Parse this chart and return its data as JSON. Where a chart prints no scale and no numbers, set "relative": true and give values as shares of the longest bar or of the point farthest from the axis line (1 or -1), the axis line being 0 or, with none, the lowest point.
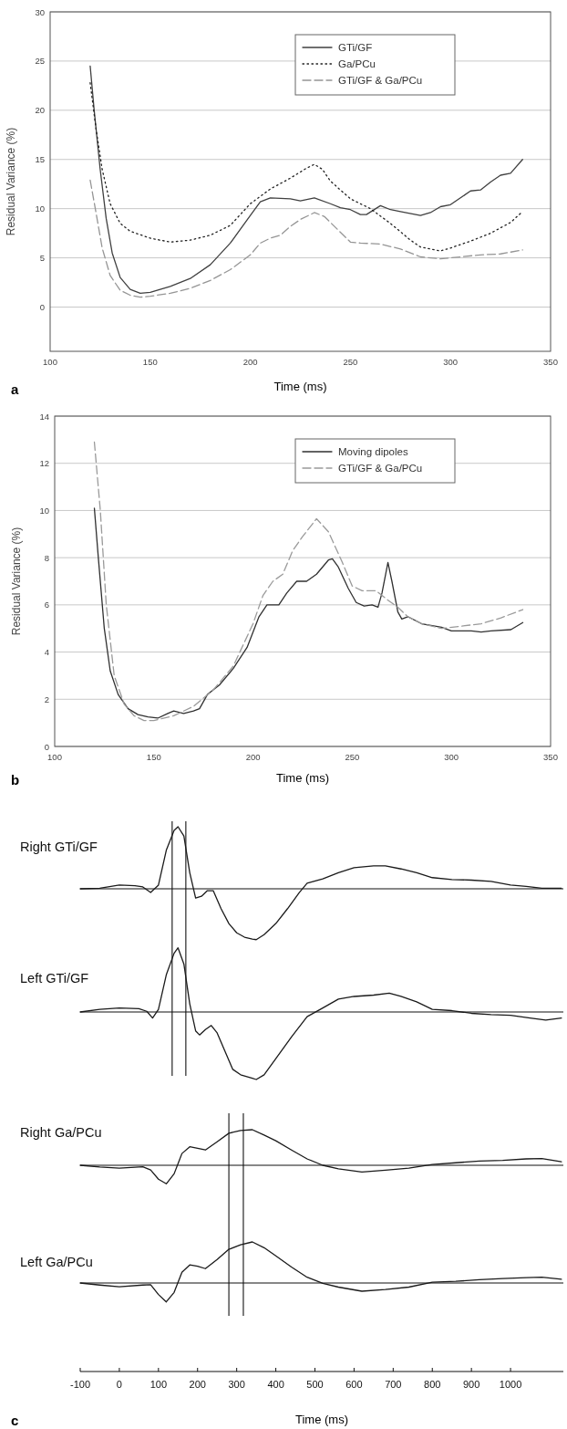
{
  "chart_data": [
    {
      "type": "line",
      "xlabel": "Time (ms)",
      "ylabel": "Residual Variance (%)",
      "annotations": [
        "a"
      ],
      "xlim": [
        100,
        350
      ],
      "xticks": [
        100,
        150,
        200,
        250,
        300,
        350
      ],
      "ylim": [
        -4.5,
        30
      ],
      "yticks": [
        0,
        5,
        10,
        15,
        20,
        25,
        30
      ],
      "grid": "y",
      "legend": "top right",
      "series": [
        {
          "name": "GTi/GF",
          "color": "#404040",
          "line_style": "solid",
          "x": [
            120,
            122,
            125,
            128,
            131,
            135,
            140,
            145,
            150,
            160,
            170,
            180,
            190,
            200,
            205,
            210,
            220,
            225,
            232,
            240,
            245,
            250,
            255,
            258,
            265,
            270,
            275,
            285,
            290,
            295,
            300,
            305,
            310,
            315,
            320,
            325,
            330,
            336
          ],
          "values": [
            24.5,
            20,
            14,
            9,
            5.5,
            3,
            1.8,
            1.4,
            1.5,
            2.1,
            2.9,
            4.3,
            6.5,
            9.3,
            10.7,
            11.1,
            11.0,
            10.8,
            11.1,
            10.5,
            10.1,
            9.9,
            9.4,
            9.4,
            10.3,
            9.9,
            9.7,
            9.3,
            9.6,
            10.2,
            10.4,
            11.1,
            11.8,
            11.9,
            12.7,
            13.4,
            13.6,
            15.0
          ]
        },
        {
          "name": "Ga/PCu",
          "color": "#202020",
          "line_style": "dotted",
          "x": [
            120,
            123,
            126,
            130,
            135,
            140,
            150,
            160,
            170,
            180,
            190,
            200,
            210,
            220,
            228,
            232,
            236,
            240,
            250,
            260,
            270,
            280,
            285,
            295,
            300,
            310,
            320,
            330,
            336
          ],
          "values": [
            22.8,
            18,
            14,
            10.5,
            8.5,
            7.7,
            7.0,
            6.6,
            6.8,
            7.3,
            8.3,
            10.5,
            12,
            13.1,
            14.1,
            14.5,
            14.0,
            12.8,
            11.0,
            10.0,
            8.5,
            6.8,
            6.1,
            5.7,
            6.0,
            6.7,
            7.5,
            8.6,
            9.7
          ]
        },
        {
          "name": "GTi/GF & Ga/PCu",
          "color": "#959595",
          "line_style": "dashed",
          "x": [
            120,
            123,
            126,
            130,
            135,
            140,
            145,
            150,
            160,
            170,
            180,
            190,
            200,
            205,
            210,
            215,
            220,
            225,
            232,
            237,
            245,
            250,
            255,
            265,
            275,
            285,
            295,
            305,
            315,
            325,
            336
          ],
          "values": [
            12.9,
            9.5,
            6,
            3.2,
            1.7,
            1.2,
            1.0,
            1.1,
            1.4,
            1.9,
            2.7,
            3.8,
            5.3,
            6.5,
            7.0,
            7.3,
            8.2,
            8.9,
            9.6,
            9.2,
            7.6,
            6.6,
            6.5,
            6.4,
            5.9,
            5.1,
            4.9,
            5.1,
            5.3,
            5.4,
            5.8
          ]
        }
      ]
    },
    {
      "type": "line",
      "xlabel": "Time (ms)",
      "ylabel": "Residual Variance (%)",
      "annotations": [
        "b"
      ],
      "xlim": [
        100,
        350
      ],
      "xticks": [
        100,
        150,
        200,
        250,
        300,
        350
      ],
      "ylim": [
        0,
        14
      ],
      "yticks": [
        0,
        2,
        4,
        6,
        8,
        10,
        12,
        14
      ],
      "grid": "y",
      "legend": "top right",
      "series": [
        {
          "name": "Moving dipoles",
          "color": "#303030",
          "line_style": "solid",
          "x": [
            120,
            122,
            125,
            128,
            132,
            137,
            142,
            147,
            152,
            157,
            160,
            165,
            170,
            173,
            177,
            183,
            190,
            197,
            203,
            207,
            213,
            217,
            222,
            227,
            232,
            238,
            240,
            243,
            248,
            252,
            256,
            260,
            263,
            265,
            268,
            270,
            273,
            275,
            278,
            285,
            295,
            300,
            310,
            315,
            320,
            330,
            336
          ],
          "values": [
            10.1,
            8,
            5,
            3.2,
            2.2,
            1.6,
            1.35,
            1.25,
            1.2,
            1.4,
            1.5,
            1.4,
            1.5,
            1.6,
            2.2,
            2.6,
            3.3,
            4.2,
            5.5,
            6.0,
            6.0,
            6.5,
            7.0,
            7.0,
            7.3,
            7.9,
            7.95,
            7.6,
            6.7,
            6.1,
            5.95,
            6.0,
            5.9,
            6.5,
            7.8,
            7.0,
            5.7,
            5.4,
            5.5,
            5.2,
            5.05,
            4.9,
            4.9,
            4.85,
            4.9,
            4.95,
            5.25
          ]
        },
        {
          "name": "GTi/GF & Ga/PCu",
          "color": "#9a9a9a",
          "line_style": "dashed",
          "x": [
            120,
            123,
            126,
            130,
            135,
            140,
            145,
            150,
            160,
            170,
            180,
            190,
            200,
            205,
            210,
            215,
            220,
            225,
            232,
            238,
            245,
            250,
            255,
            262,
            268,
            273,
            278,
            285,
            295,
            305,
            315,
            325,
            336
          ],
          "values": [
            12.9,
            10,
            6,
            3,
            1.8,
            1.3,
            1.1,
            1.1,
            1.3,
            1.7,
            2.4,
            3.4,
            5.2,
            6.4,
            7.0,
            7.3,
            8.3,
            8.9,
            9.65,
            9.1,
            7.8,
            6.8,
            6.6,
            6.6,
            6.2,
            5.9,
            5.5,
            5.2,
            5.0,
            5.1,
            5.2,
            5.45,
            5.8
          ]
        }
      ]
    },
    {
      "type": "line",
      "title": "Right GTi/GF",
      "relative": true,
      "xlim": [
        -100,
        1135
      ],
      "tick_labels": false,
      "ref_lines": [
        {
          "axis": "x",
          "value": 135
        },
        {
          "axis": "x",
          "value": 170
        }
      ],
      "series": [
        {
          "color": "#1a1a1a",
          "x": [
            -100,
            -50,
            0,
            40,
            60,
            80,
            100,
            120,
            140,
            150,
            165,
            180,
            195,
            210,
            225,
            240,
            260,
            280,
            300,
            320,
            340,
            350,
            370,
            400,
            430,
            460,
            480,
            520,
            560,
            600,
            650,
            680,
            720,
            760,
            800,
            850,
            900,
            950,
            1000,
            1040,
            1080,
            1130
          ],
          "values": [
            0,
            0.01,
            0.06,
            0.05,
            0.03,
            -0.06,
            0.06,
            0.62,
            0.94,
            1,
            0.85,
            0.26,
            -0.15,
            -0.12,
            -0.03,
            -0.03,
            -0.32,
            -0.56,
            -0.71,
            -0.78,
            -0.81,
            -0.82,
            -0.74,
            -0.56,
            -0.32,
            -0.06,
            0.09,
            0.16,
            0.26,
            0.34,
            0.37,
            0.37,
            0.32,
            0.26,
            0.18,
            0.15,
            0.14,
            0.12,
            0.06,
            0.04,
            0.01,
            0.01
          ]
        }
      ]
    },
    {
      "type": "line",
      "title": "Left GTi/GF",
      "relative": true,
      "xlim": [
        -100,
        1135
      ],
      "tick_labels": false,
      "ref_lines": [
        {
          "axis": "x",
          "value": 135
        },
        {
          "axis": "x",
          "value": 170
        }
      ],
      "series": [
        {
          "color": "#1a1a1a",
          "x": [
            -100,
            -50,
            0,
            50,
            70,
            85,
            100,
            120,
            140,
            150,
            165,
            180,
            195,
            205,
            220,
            235,
            250,
            270,
            290,
            310,
            340,
            350,
            370,
            400,
            440,
            480,
            520,
            560,
            600,
            650,
            690,
            720,
            760,
            800,
            850,
            900,
            950,
            1000,
            1050,
            1090,
            1130
          ],
          "values": [
            0,
            0.04,
            0.06,
            0.05,
            0.01,
            -0.09,
            0.04,
            0.55,
            0.87,
            0.95,
            0.71,
            0.12,
            -0.28,
            -0.34,
            -0.26,
            -0.2,
            -0.31,
            -0.58,
            -0.85,
            -0.93,
            -0.98,
            -1,
            -0.93,
            -0.69,
            -0.37,
            -0.07,
            0.06,
            0.19,
            0.23,
            0.25,
            0.28,
            0.23,
            0.15,
            0.04,
            0.02,
            -0.02,
            -0.04,
            -0.05,
            -0.09,
            -0.12,
            -0.09
          ]
        }
      ]
    },
    {
      "type": "line",
      "title": "Right Ga/PCu",
      "relative": true,
      "xlim": [
        -100,
        1135
      ],
      "tick_labels": false,
      "ref_lines": [
        {
          "axis": "x",
          "value": 280
        },
        {
          "axis": "x",
          "value": 317
        }
      ],
      "series": [
        {
          "color": "#1a1a1a",
          "x": [
            -100,
            -50,
            0,
            60,
            80,
            100,
            120,
            140,
            160,
            180,
            200,
            220,
            250,
            280,
            310,
            340,
            370,
            400,
            440,
            480,
            520,
            560,
            620,
            680,
            740,
            800,
            860,
            920,
            980,
            1040,
            1080,
            1130
          ],
          "values": [
            0,
            -0.05,
            -0.08,
            -0.04,
            -0.13,
            -0.39,
            -0.52,
            -0.24,
            0.33,
            0.52,
            0.48,
            0.43,
            0.66,
            0.9,
            0.98,
            1,
            0.85,
            0.69,
            0.43,
            0.18,
            0,
            -0.1,
            -0.19,
            -0.14,
            -0.08,
            0.02,
            0.07,
            0.12,
            0.14,
            0.18,
            0.19,
            0.1
          ]
        }
      ]
    },
    {
      "type": "line",
      "title": "Left Ga/PCu",
      "relative": true,
      "xlabel": "Time (ms)",
      "annotations": [
        "c"
      ],
      "xlim": [
        -100,
        1135
      ],
      "xticks": [
        -100,
        0,
        100,
        200,
        300,
        400,
        500,
        600,
        700,
        800,
        900,
        1000
      ],
      "tick_labels": "x",
      "ref_lines": [
        {
          "axis": "x",
          "value": 280
        },
        {
          "axis": "x",
          "value": 317
        }
      ],
      "series": [
        {
          "color": "#1a1a1a",
          "x": [
            -100,
            -50,
            0,
            60,
            80,
            100,
            120,
            140,
            160,
            180,
            200,
            220,
            250,
            280,
            310,
            340,
            370,
            400,
            440,
            480,
            520,
            560,
            620,
            680,
            740,
            800,
            860,
            920,
            980,
            1040,
            1080,
            1130
          ],
          "values": [
            0,
            -0.05,
            -0.09,
            -0.05,
            -0.04,
            -0.28,
            -0.46,
            -0.23,
            0.26,
            0.44,
            0.41,
            0.35,
            0.57,
            0.82,
            0.93,
            1,
            0.86,
            0.66,
            0.39,
            0.14,
            -0.01,
            -0.1,
            -0.2,
            -0.16,
            -0.1,
            0.02,
            0.04,
            0.08,
            0.11,
            0.13,
            0.14,
            0.09
          ]
        }
      ]
    }
  ]
}
